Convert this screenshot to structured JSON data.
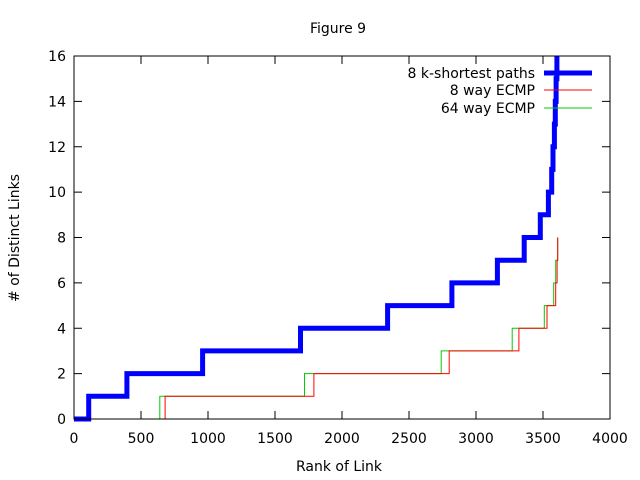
{
  "chart_data": {
    "type": "line",
    "title": "Figure 9",
    "xlabel": "Rank of Link",
    "ylabel": "# of Distinct Links",
    "xlim": [
      0,
      4000
    ],
    "ylim": [
      0,
      16
    ],
    "xticks": [
      0,
      500,
      1000,
      1500,
      2000,
      2500,
      3000,
      3500,
      4000
    ],
    "yticks": [
      0,
      2,
      4,
      6,
      8,
      10,
      12,
      14,
      16
    ],
    "grid": false,
    "legend_position": "top-right",
    "series": [
      {
        "name": "8 k-shortest paths",
        "color": "#0000ff",
        "style": "thick-step",
        "points": [
          [
            0,
            0
          ],
          [
            110,
            0
          ],
          [
            110,
            1
          ],
          [
            395,
            1
          ],
          [
            395,
            2
          ],
          [
            960,
            2
          ],
          [
            960,
            3
          ],
          [
            1690,
            3
          ],
          [
            1690,
            4
          ],
          [
            2340,
            4
          ],
          [
            2340,
            5
          ],
          [
            2820,
            5
          ],
          [
            2820,
            6
          ],
          [
            3160,
            6
          ],
          [
            3160,
            7
          ],
          [
            3360,
            7
          ],
          [
            3360,
            8
          ],
          [
            3480,
            8
          ],
          [
            3480,
            9
          ],
          [
            3540,
            9
          ],
          [
            3540,
            10
          ],
          [
            3565,
            10
          ],
          [
            3565,
            11
          ],
          [
            3575,
            11
          ],
          [
            3575,
            12
          ],
          [
            3585,
            12
          ],
          [
            3585,
            13
          ],
          [
            3592,
            13
          ],
          [
            3592,
            14
          ],
          [
            3598,
            14
          ],
          [
            3598,
            15
          ],
          [
            3604,
            15
          ],
          [
            3604,
            16
          ]
        ]
      },
      {
        "name": "8 way ECMP",
        "color": "#ff0000",
        "style": "thin-step",
        "points": [
          [
            680,
            0
          ],
          [
            680,
            1
          ],
          [
            1790,
            1
          ],
          [
            1790,
            2
          ],
          [
            2800,
            2
          ],
          [
            2800,
            3
          ],
          [
            3320,
            3
          ],
          [
            3320,
            4
          ],
          [
            3530,
            4
          ],
          [
            3530,
            5
          ],
          [
            3595,
            5
          ],
          [
            3595,
            6
          ],
          [
            3605,
            6
          ],
          [
            3605,
            7
          ],
          [
            3610,
            7
          ],
          [
            3610,
            8
          ]
        ]
      },
      {
        "name": "64 way ECMP",
        "color": "#00cc00",
        "style": "thin-step",
        "points": [
          [
            640,
            0
          ],
          [
            640,
            1
          ],
          [
            1720,
            1
          ],
          [
            1720,
            2
          ],
          [
            2740,
            2
          ],
          [
            2740,
            3
          ],
          [
            3270,
            3
          ],
          [
            3270,
            4
          ],
          [
            3510,
            4
          ],
          [
            3510,
            5
          ],
          [
            3580,
            5
          ],
          [
            3580,
            6
          ],
          [
            3595,
            6
          ],
          [
            3595,
            7
          ],
          [
            3610,
            7
          ],
          [
            3610,
            8
          ]
        ]
      }
    ]
  }
}
